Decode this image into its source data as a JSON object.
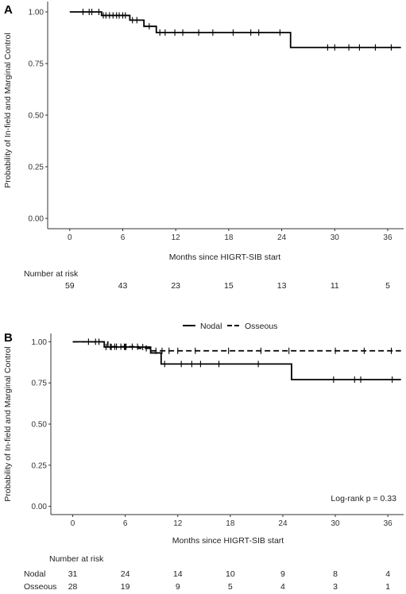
{
  "chart_data": [
    {
      "type": "line",
      "panel": "A",
      "xlabel": "Months since HIGRT-SIB start",
      "ylabel": "Probability of In-field and Marginal Control",
      "xlim": [
        -2.5,
        37.8
      ],
      "ylim": [
        -0.05,
        1.05
      ],
      "xticks": [
        0,
        6,
        12,
        18,
        24,
        30,
        36
      ],
      "yticks": [
        "0.00",
        "0.25",
        "0.50",
        "0.75",
        "1.00"
      ],
      "line_style": "step",
      "grid": false,
      "series": [
        {
          "step_x": [
            0,
            3.6,
            6.8,
            8.4,
            9.8,
            25.0,
            37.5
          ],
          "step_y": [
            1.0,
            0.983,
            0.96,
            0.93,
            0.9,
            0.828,
            0.828
          ],
          "censored_times": [
            1.5,
            2.2,
            2.5,
            3.3,
            3.8,
            4.1,
            4.5,
            4.9,
            5.3,
            5.6,
            6.0,
            6.3,
            7.1,
            7.6,
            9.0,
            10.2,
            10.8,
            11.9,
            12.8,
            14.6,
            16.2,
            18.5,
            20.5,
            21.4,
            23.8,
            29.2,
            30.0,
            31.6,
            32.8,
            34.6,
            36.4
          ]
        }
      ],
      "risk_table": {
        "title": "Number at risk",
        "times": [
          0,
          6,
          12,
          18,
          24,
          30,
          36
        ],
        "rows": [
          {
            "values": [
              "59",
              "43",
              "23",
              "15",
              "13",
              "11",
              "5"
            ]
          }
        ]
      }
    },
    {
      "type": "line",
      "panel": "B",
      "xlabel": "Months since HIGRT-SIB start",
      "ylabel": "Probability of In-field and Marginal Control",
      "xlim": [
        -2.5,
        37.8
      ],
      "ylim": [
        -0.05,
        1.05
      ],
      "xticks": [
        0,
        6,
        12,
        18,
        24,
        30,
        36
      ],
      "yticks": [
        "0.00",
        "0.25",
        "0.50",
        "0.75",
        "1.00"
      ],
      "line_style": "step",
      "grid": false,
      "legend_position": "top-center",
      "annotation": "Log-rank p = 0.33",
      "series": [
        {
          "name": "Nodal",
          "dash": "solid",
          "step_x": [
            0,
            3.6,
            8.9,
            10.1,
            25.0,
            37.5
          ],
          "step_y": [
            1.0,
            0.968,
            0.932,
            0.865,
            0.77,
            0.77
          ],
          "censored_times": [
            1.8,
            2.6,
            3.8,
            4.4,
            6.0,
            8.0,
            10.5,
            12.4,
            13.6,
            14.6,
            16.7,
            21.2,
            29.8,
            32.2,
            32.9,
            36.5
          ]
        },
        {
          "name": "Osseous",
          "dash": "dashed",
          "step_x": [
            0,
            4.0,
            7.5,
            9.0,
            37.5
          ],
          "step_y": [
            1.0,
            0.97,
            0.96,
            0.945,
            0.945
          ],
          "censored_times": [
            3.0,
            4.3,
            4.8,
            5.0,
            5.5,
            5.9,
            6.1,
            6.8,
            7.4,
            8.4,
            9.5,
            10.2,
            11.0,
            12.0,
            14.0,
            17.8,
            21.5,
            24.7,
            30.0,
            33.3,
            36.4
          ]
        }
      ],
      "risk_table": {
        "title": "Number at risk",
        "times": [
          0,
          6,
          12,
          18,
          24,
          30,
          36
        ],
        "rows": [
          {
            "name": "Nodal",
            "values": [
              "31",
              "24",
              "14",
              "10",
              "9",
              "8",
              "4"
            ]
          },
          {
            "name": "Osseous",
            "values": [
              "28",
              "19",
              "9",
              "5",
              "4",
              "3",
              "1"
            ]
          }
        ]
      }
    }
  ]
}
